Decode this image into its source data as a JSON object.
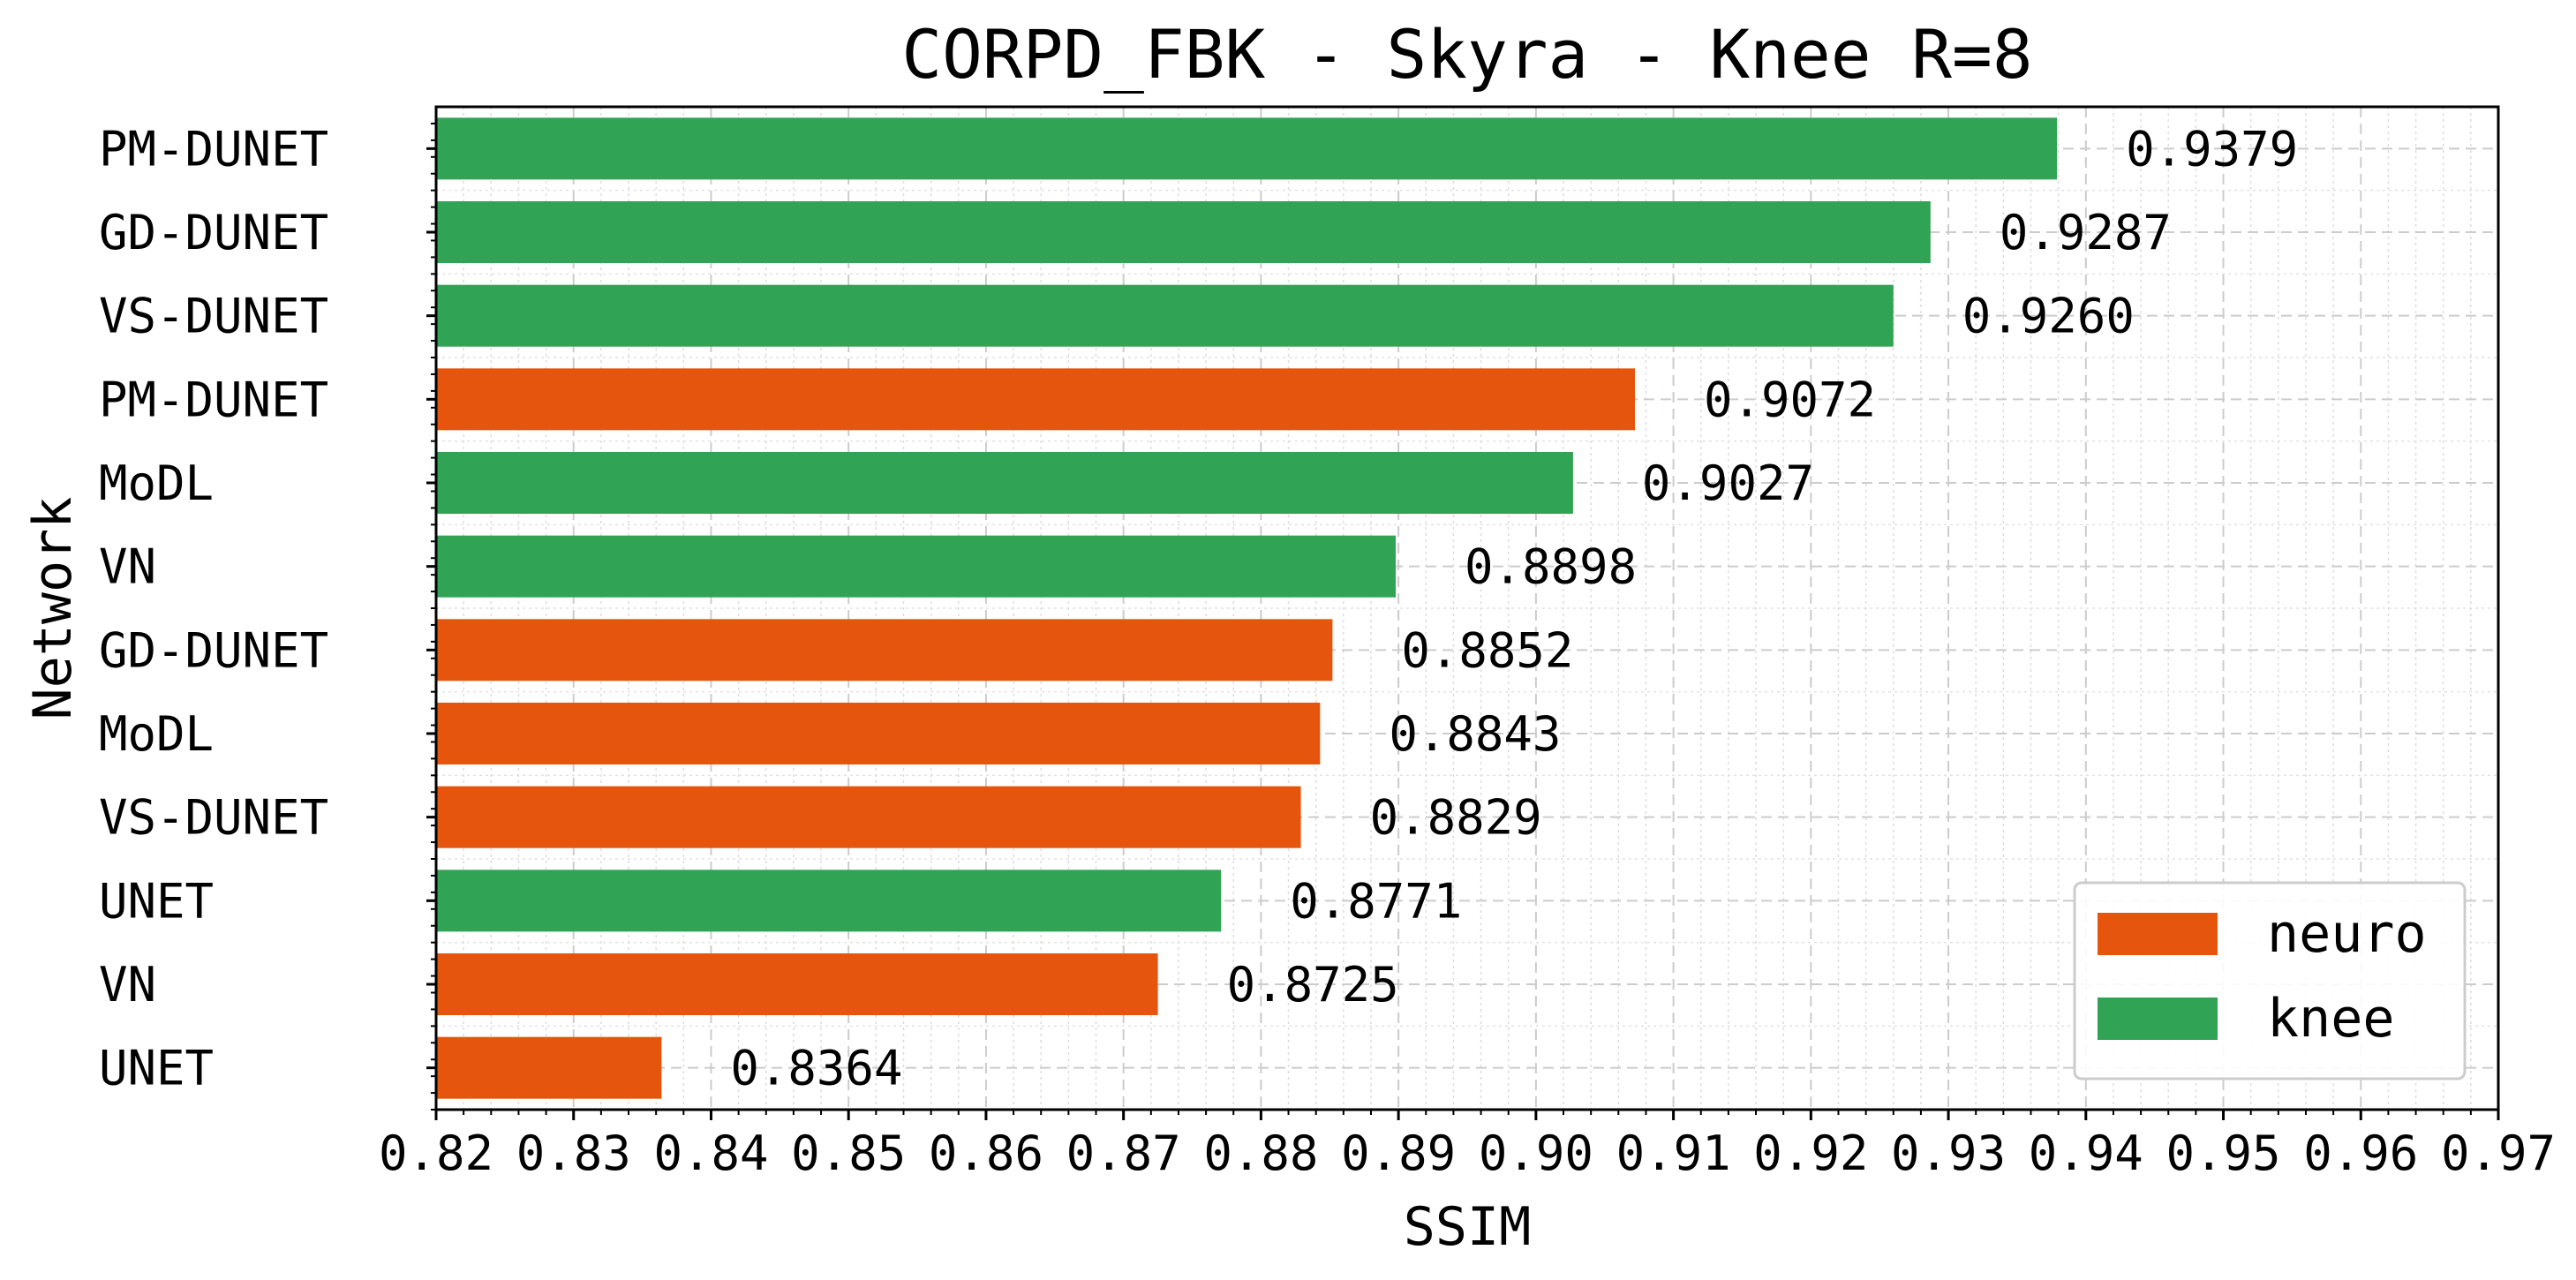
{
  "chart_data": {
    "type": "bar",
    "orientation": "horizontal",
    "title": "CORPD_FBK - Skyra - Knee R=8",
    "xlabel": "SSIM",
    "ylabel": "Network",
    "xlim": [
      0.82,
      0.97
    ],
    "xticks": [
      "0.82",
      "0.83",
      "0.84",
      "0.85",
      "0.86",
      "0.87",
      "0.88",
      "0.89",
      "0.90",
      "0.91",
      "0.92",
      "0.93",
      "0.94",
      "0.95",
      "0.96",
      "0.97"
    ],
    "grid": true,
    "legend_position": "lower-right",
    "series": [
      {
        "name": "neuro",
        "color": "#e6550d"
      },
      {
        "name": "knee",
        "color": "#31a354"
      }
    ],
    "bars": [
      {
        "label": "PM-DUNET",
        "value": 0.9379,
        "series": "knee",
        "value_label": "0.9379"
      },
      {
        "label": "GD-DUNET",
        "value": 0.9287,
        "series": "knee",
        "value_label": "0.9287"
      },
      {
        "label": "VS-DUNET",
        "value": 0.926,
        "series": "knee",
        "value_label": "0.9260"
      },
      {
        "label": "PM-DUNET",
        "value": 0.9072,
        "series": "neuro",
        "value_label": "0.9072"
      },
      {
        "label": "MoDL",
        "value": 0.9027,
        "series": "knee",
        "value_label": "0.9027"
      },
      {
        "label": "VN",
        "value": 0.8898,
        "series": "knee",
        "value_label": "0.8898"
      },
      {
        "label": "GD-DUNET",
        "value": 0.8852,
        "series": "neuro",
        "value_label": "0.8852"
      },
      {
        "label": "MoDL",
        "value": 0.8843,
        "series": "neuro",
        "value_label": "0.8843"
      },
      {
        "label": "VS-DUNET",
        "value": 0.8829,
        "series": "neuro",
        "value_label": "0.8829"
      },
      {
        "label": "UNET",
        "value": 0.8771,
        "series": "knee",
        "value_label": "0.8771"
      },
      {
        "label": "VN",
        "value": 0.8725,
        "series": "neuro",
        "value_label": "0.8725"
      },
      {
        "label": "UNET",
        "value": 0.8364,
        "series": "neuro",
        "value_label": "0.8364"
      }
    ]
  }
}
